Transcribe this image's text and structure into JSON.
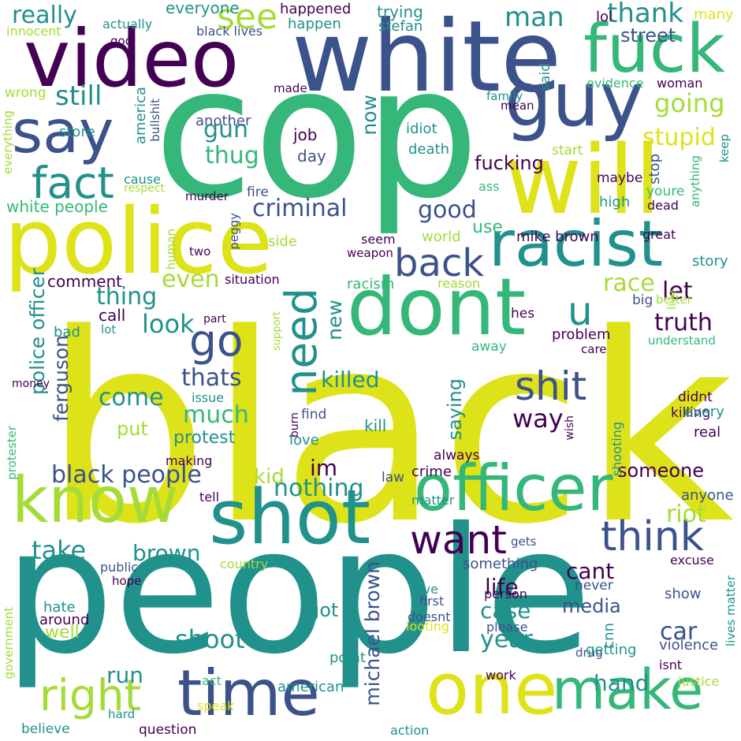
{
  "palette": {
    "dark_purple": "#440154",
    "indigo": "#3b528b",
    "teal": "#21918c",
    "green": "#35b779",
    "lime": "#a5db36",
    "yellow": "#dde318"
  },
  "words": [
    {
      "id": "black",
      "text": "black"
    },
    {
      "id": "people",
      "text": "people"
    },
    {
      "id": "cop",
      "text": "cop"
    },
    {
      "id": "white",
      "text": "white"
    },
    {
      "id": "video",
      "text": "video"
    },
    {
      "id": "police",
      "text": "police"
    },
    {
      "id": "will",
      "text": "will"
    },
    {
      "id": "guy",
      "text": "guy"
    },
    {
      "id": "fuck",
      "text": "fuck"
    },
    {
      "id": "dont",
      "text": "dont"
    },
    {
      "id": "racist",
      "text": "racist"
    },
    {
      "id": "officer",
      "text": "officer"
    },
    {
      "id": "shot",
      "text": "shot"
    },
    {
      "id": "know",
      "text": "know"
    },
    {
      "id": "one",
      "text": "one"
    },
    {
      "id": "time",
      "text": "time"
    },
    {
      "id": "make",
      "text": "make"
    },
    {
      "id": "say",
      "text": "say"
    },
    {
      "id": "need",
      "text": "need"
    },
    {
      "id": "right",
      "text": "right"
    },
    {
      "id": "fact",
      "text": "fact"
    },
    {
      "id": "back",
      "text": "back"
    },
    {
      "id": "shit",
      "text": "shit"
    },
    {
      "id": "want",
      "text": "want"
    },
    {
      "id": "think",
      "text": "think"
    },
    {
      "id": "go",
      "text": "go"
    },
    {
      "id": "u",
      "text": "u"
    },
    {
      "id": "see",
      "text": "see"
    },
    {
      "id": "thank",
      "text": "thank"
    },
    {
      "id": "man",
      "text": "man"
    },
    {
      "id": "going",
      "text": "going"
    },
    {
      "id": "stupid",
      "text": "stupid"
    },
    {
      "id": "still",
      "text": "still"
    },
    {
      "id": "really",
      "text": "really"
    },
    {
      "id": "gun",
      "text": "gun"
    },
    {
      "id": "thug",
      "text": "thug"
    },
    {
      "id": "criminal",
      "text": "criminal"
    },
    {
      "id": "white_people",
      "text": "white people"
    },
    {
      "id": "good",
      "text": "good"
    },
    {
      "id": "fucking",
      "text": "fucking"
    },
    {
      "id": "race",
      "text": "race"
    },
    {
      "id": "even",
      "text": "even"
    },
    {
      "id": "thing",
      "text": "thing"
    },
    {
      "id": "look",
      "text": "look"
    },
    {
      "id": "let",
      "text": "let"
    },
    {
      "id": "truth",
      "text": "truth"
    },
    {
      "id": "killed",
      "text": "killed"
    },
    {
      "id": "thats",
      "text": "thats"
    },
    {
      "id": "come",
      "text": "come"
    },
    {
      "id": "much",
      "text": "much"
    },
    {
      "id": "way",
      "text": "way"
    },
    {
      "id": "saying",
      "text": "saying"
    },
    {
      "id": "police_officer",
      "text": "police officer"
    },
    {
      "id": "ferguson",
      "text": "ferguson"
    },
    {
      "id": "black_people",
      "text": "black people"
    },
    {
      "id": "kid",
      "text": "kid"
    },
    {
      "id": "im",
      "text": "im"
    },
    {
      "id": "nothing",
      "text": "nothing"
    },
    {
      "id": "someone",
      "text": "someone"
    },
    {
      "id": "riot",
      "text": "riot"
    },
    {
      "id": "take",
      "text": "take"
    },
    {
      "id": "brown",
      "text": "brown"
    },
    {
      "id": "michael_brown",
      "text": "michael brown"
    },
    {
      "id": "cant",
      "text": "cant"
    },
    {
      "id": "life",
      "text": "life"
    },
    {
      "id": "case",
      "text": "case"
    },
    {
      "id": "year",
      "text": "year"
    },
    {
      "id": "shoot",
      "text": "shoot"
    },
    {
      "id": "run",
      "text": "run"
    },
    {
      "id": "hand",
      "text": "hand"
    },
    {
      "id": "car",
      "text": "car"
    },
    {
      "id": "protest",
      "text": "protest"
    },
    {
      "id": "put",
      "text": "put"
    },
    {
      "id": "street",
      "text": "street"
    },
    {
      "id": "now",
      "text": "now"
    },
    {
      "id": "new",
      "text": "new"
    },
    {
      "id": "use",
      "text": "use"
    },
    {
      "id": "comment",
      "text": "comment"
    },
    {
      "id": "got",
      "text": "got"
    },
    {
      "id": "well",
      "text": "well"
    },
    {
      "id": "media",
      "text": "media"
    },
    {
      "id": "everyone",
      "text": "everyone"
    },
    {
      "id": "happened",
      "text": "happened"
    },
    {
      "id": "trying",
      "text": "trying"
    },
    {
      "id": "stefan",
      "text": "stefan"
    },
    {
      "id": "happen",
      "text": "happen"
    },
    {
      "id": "lol",
      "text": "lol"
    },
    {
      "id": "many",
      "text": "many"
    },
    {
      "id": "actually",
      "text": "actually"
    },
    {
      "id": "innocent",
      "text": "innocent"
    },
    {
      "id": "god",
      "text": "god"
    },
    {
      "id": "black_lives",
      "text": "black lives"
    },
    {
      "id": "made",
      "text": "made"
    },
    {
      "id": "said",
      "text": "said"
    },
    {
      "id": "evidence",
      "text": "evidence"
    },
    {
      "id": "woman",
      "text": "woman"
    },
    {
      "id": "family",
      "text": "family"
    },
    {
      "id": "mean",
      "text": "mean"
    },
    {
      "id": "wrong",
      "text": "wrong"
    },
    {
      "id": "bullshit",
      "text": "bullshit"
    },
    {
      "id": "america",
      "text": "america"
    },
    {
      "id": "another",
      "text": "another"
    },
    {
      "id": "job",
      "text": "job"
    },
    {
      "id": "idiot",
      "text": "idiot"
    },
    {
      "id": "death",
      "text": "death"
    },
    {
      "id": "everything",
      "text": "everything"
    },
    {
      "id": "store",
      "text": "store"
    },
    {
      "id": "day",
      "text": "day"
    },
    {
      "id": "start",
      "text": "start"
    },
    {
      "id": "stop",
      "text": "stop"
    },
    {
      "id": "keep",
      "text": "keep"
    },
    {
      "id": "cause",
      "text": "cause"
    },
    {
      "id": "respect",
      "text": "respect"
    },
    {
      "id": "maybe",
      "text": "maybe"
    },
    {
      "id": "youre",
      "text": "youre"
    },
    {
      "id": "anything",
      "text": "anything"
    },
    {
      "id": "ass",
      "text": "ass"
    },
    {
      "id": "fire",
      "text": "fire"
    },
    {
      "id": "murder",
      "text": "murder"
    },
    {
      "id": "peggy",
      "text": "peggy"
    },
    {
      "id": "high",
      "text": "high"
    },
    {
      "id": "dead",
      "text": "dead"
    },
    {
      "id": "world",
      "text": "world"
    },
    {
      "id": "mike_brown",
      "text": "mike brown"
    },
    {
      "id": "great",
      "text": "great"
    },
    {
      "id": "human",
      "text": "human"
    },
    {
      "id": "two",
      "text": "two"
    },
    {
      "id": "side",
      "text": "side"
    },
    {
      "id": "seem",
      "text": "seem"
    },
    {
      "id": "weapon",
      "text": "weapon"
    },
    {
      "id": "story",
      "text": "story"
    },
    {
      "id": "situation",
      "text": "situation"
    },
    {
      "id": "racism",
      "text": "racism"
    },
    {
      "id": "reason",
      "text": "reason"
    },
    {
      "id": "better",
      "text": "better"
    },
    {
      "id": "live",
      "text": "live"
    },
    {
      "id": "big",
      "text": "big"
    },
    {
      "id": "call",
      "text": "call"
    },
    {
      "id": "part",
      "text": "part"
    },
    {
      "id": "hes",
      "text": "hes"
    },
    {
      "id": "lot",
      "text": "lot"
    },
    {
      "id": "support",
      "text": "support"
    },
    {
      "id": "bad",
      "text": "bad"
    },
    {
      "id": "problem",
      "text": "problem"
    },
    {
      "id": "care",
      "text": "care"
    },
    {
      "id": "away",
      "text": "away"
    },
    {
      "id": "understand",
      "text": "understand"
    },
    {
      "id": "money",
      "text": "money"
    },
    {
      "id": "issue",
      "text": "issue"
    },
    {
      "id": "burn",
      "text": "burn"
    },
    {
      "id": "find",
      "text": "find"
    },
    {
      "id": "didnt",
      "text": "didnt"
    },
    {
      "id": "killing",
      "text": "killing"
    },
    {
      "id": "every",
      "text": "every"
    },
    {
      "id": "kill",
      "text": "kill"
    },
    {
      "id": "wish",
      "text": "wish"
    },
    {
      "id": "real",
      "text": "real"
    },
    {
      "id": "love",
      "text": "love"
    },
    {
      "id": "protester",
      "text": "protester"
    },
    {
      "id": "making",
      "text": "making"
    },
    {
      "id": "always",
      "text": "always"
    },
    {
      "id": "shooting",
      "text": "shooting"
    },
    {
      "id": "law",
      "text": "law"
    },
    {
      "id": "crime",
      "text": "crime"
    },
    {
      "id": "tell",
      "text": "tell"
    },
    {
      "id": "anyone",
      "text": "anyone"
    },
    {
      "id": "matter",
      "text": "matter"
    },
    {
      "id": "gets",
      "text": "gets"
    },
    {
      "id": "excuse",
      "text": "excuse"
    },
    {
      "id": "public",
      "text": "public"
    },
    {
      "id": "country",
      "text": "country"
    },
    {
      "id": "something",
      "text": "something"
    },
    {
      "id": "hope",
      "text": "hope"
    },
    {
      "id": "never",
      "text": "never"
    },
    {
      "id": "give",
      "text": "give"
    },
    {
      "id": "person",
      "text": "person"
    },
    {
      "id": "first",
      "text": "first"
    },
    {
      "id": "doesnt",
      "text": "doesnt"
    },
    {
      "id": "looting",
      "text": "looting"
    },
    {
      "id": "cnn",
      "text": "cnn"
    },
    {
      "id": "show",
      "text": "show"
    },
    {
      "id": "lives_matter",
      "text": "lives matter"
    },
    {
      "id": "hate",
      "text": "hate"
    },
    {
      "id": "around",
      "text": "around"
    },
    {
      "id": "please",
      "text": "please"
    },
    {
      "id": "government",
      "text": "government"
    },
    {
      "id": "point",
      "text": "point"
    },
    {
      "id": "drug",
      "text": "drug"
    },
    {
      "id": "getting",
      "text": "getting"
    },
    {
      "id": "violence",
      "text": "violence"
    },
    {
      "id": "isnt",
      "text": "isnt"
    },
    {
      "id": "act",
      "text": "act"
    },
    {
      "id": "american",
      "text": "american"
    },
    {
      "id": "work",
      "text": "work"
    },
    {
      "id": "justice",
      "text": "justice"
    },
    {
      "id": "hard",
      "text": "hard"
    },
    {
      "id": "speak",
      "text": "speak"
    },
    {
      "id": "believe",
      "text": "believe"
    },
    {
      "id": "question",
      "text": "question"
    },
    {
      "id": "action",
      "text": "action"
    }
  ]
}
